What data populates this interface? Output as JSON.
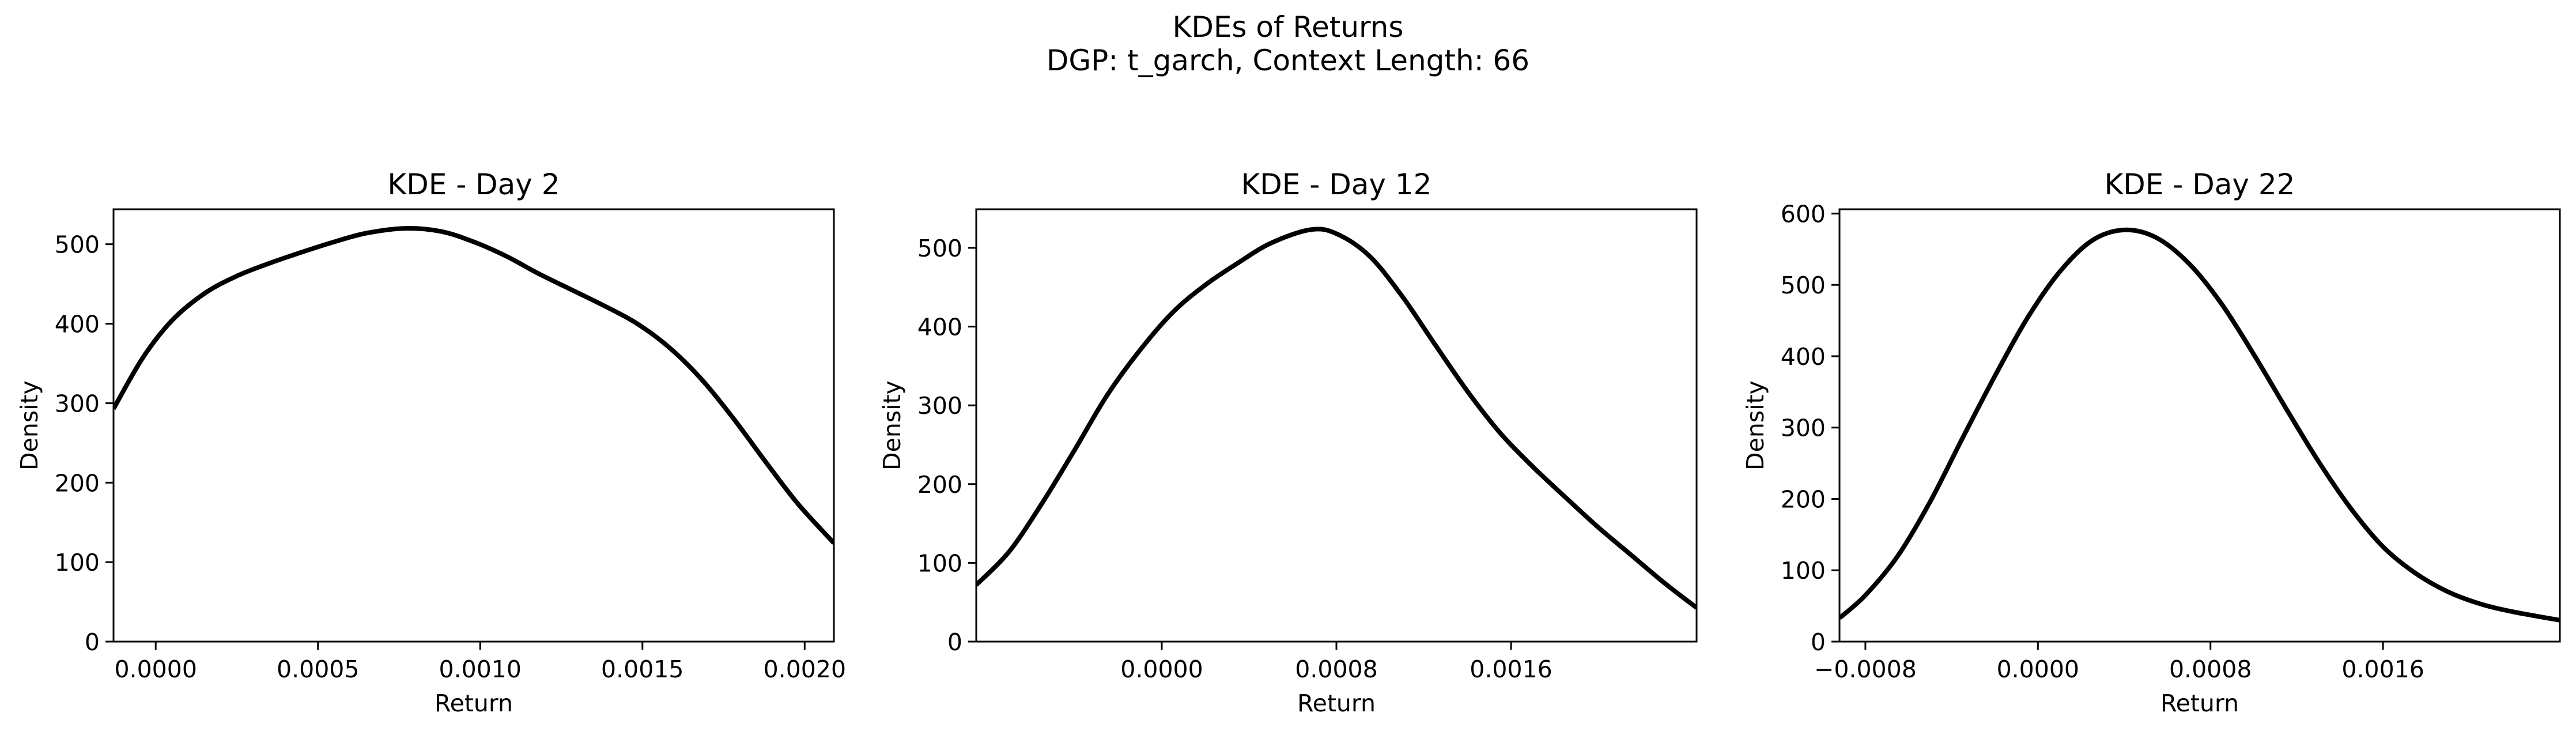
{
  "figure_title_line1": "KDEs of Returns",
  "figure_title_line2": "DGP: t_garch, Context Length: 66",
  "chart_data": [
    {
      "type": "line",
      "title": "KDE - Day 2",
      "xlabel": "Return",
      "ylabel": "Density",
      "xlim": [
        -0.00013,
        0.00209
      ],
      "ylim": [
        0,
        544
      ],
      "xticks": [
        0.0,
        0.0005,
        0.001,
        0.0015,
        0.002
      ],
      "xtick_labels": [
        "0.0000",
        "0.0005",
        "0.0010",
        "0.0015",
        "0.0020"
      ],
      "yticks": [
        0,
        100,
        200,
        300,
        400,
        500
      ],
      "ytick_labels": [
        "0",
        "100",
        "200",
        "300",
        "400",
        "500"
      ],
      "series": [
        {
          "name": "KDE",
          "x": [
            -0.00013,
            -4e-05,
            5e-05,
            0.00015,
            0.00025,
            0.00035,
            0.00045,
            0.00055,
            0.00065,
            0.00077,
            0.00088,
            0.00098,
            0.00108,
            0.00118,
            0.00128,
            0.00138,
            0.00148,
            0.00158,
            0.00168,
            0.00178,
            0.00188,
            0.00198,
            0.00209
          ],
          "y": [
            293,
            357,
            404,
            438,
            460,
            476,
            490,
            503,
            514,
            520,
            516,
            503,
            485,
            463,
            443,
            423,
            401,
            371,
            331,
            281,
            226,
            173,
            124
          ]
        }
      ]
    },
    {
      "type": "line",
      "title": "KDE - Day 12",
      "xlabel": "Return",
      "ylabel": "Density",
      "xlim": [
        -0.00085,
        0.00245
      ],
      "ylim": [
        0,
        549
      ],
      "xticks": [
        0.0,
        0.0008,
        0.0016
      ],
      "xtick_labels": [
        "0.0000",
        "0.0008",
        "0.0016"
      ],
      "yticks": [
        0,
        100,
        200,
        300,
        400,
        500
      ],
      "ytick_labels": [
        "0",
        "100",
        "200",
        "300",
        "400",
        "500"
      ],
      "series": [
        {
          "name": "KDE",
          "x": [
            -0.00085,
            -0.0007,
            -0.00055,
            -0.0004,
            -0.00025,
            -0.0001,
            5e-05,
            0.0002,
            0.00035,
            0.0005,
            0.00068,
            0.0008,
            0.00095,
            0.0011,
            0.00125,
            0.0014,
            0.00155,
            0.0017,
            0.00185,
            0.002,
            0.00215,
            0.0023,
            0.00245
          ],
          "y": [
            72,
            114,
            175,
            243,
            313,
            370,
            418,
            453,
            481,
            506,
            523,
            518,
            490,
            439,
            378,
            318,
            265,
            222,
            183,
            145,
            110,
            75,
            43
          ]
        }
      ]
    },
    {
      "type": "line",
      "title": "KDE - Day 22",
      "xlabel": "Return",
      "ylabel": "Density",
      "xlim": [
        -0.00092,
        0.00242
      ],
      "ylim": [
        0,
        606
      ],
      "xticks": [
        -0.0008,
        0.0,
        0.0008,
        0.0016
      ],
      "xtick_labels": [
        "−0.0008",
        "0.0000",
        "0.0008",
        "0.0016"
      ],
      "yticks": [
        0,
        100,
        200,
        300,
        400,
        500,
        600
      ],
      "ytick_labels": [
        "0",
        "100",
        "200",
        "300",
        "400",
        "500",
        "600"
      ],
      "series": [
        {
          "name": "KDE",
          "x": [
            -0.00092,
            -0.0008,
            -0.00065,
            -0.0005,
            -0.00035,
            -0.0002,
            -5e-05,
            0.0001,
            0.00025,
            0.0004,
            0.00055,
            0.0007,
            0.00085,
            0.001,
            0.00115,
            0.0013,
            0.00145,
            0.0016,
            0.00175,
            0.0019,
            0.00205,
            0.0022,
            0.00242
          ],
          "y": [
            33,
            65,
            120,
            196,
            285,
            372,
            453,
            518,
            562,
            577,
            566,
            530,
            474,
            403,
            327,
            253,
            187,
            133,
            96,
            70,
            53,
            42,
            30
          ]
        }
      ]
    }
  ]
}
